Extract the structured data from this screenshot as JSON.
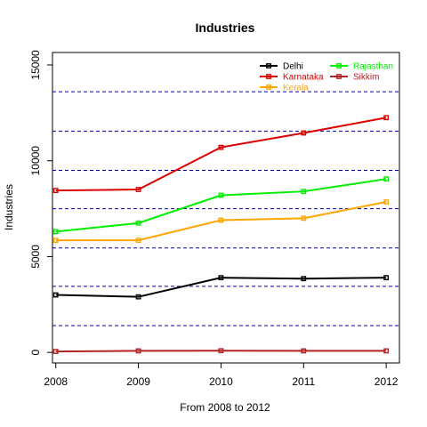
{
  "chart_data": {
    "type": "line",
    "title": "Industries",
    "xlabel": "From 2008 to 2012",
    "ylabel": "Industries",
    "x": [
      2008,
      2009,
      2010,
      2011,
      2012
    ],
    "x_tick_labels": [
      "2008",
      "2009",
      "2010",
      "2011",
      "2012"
    ],
    "xlim": [
      2007.96,
      2012.16
    ],
    "ylim": [
      -550,
      15650
    ],
    "y_ticks": [
      0,
      5000,
      10000,
      15000
    ],
    "y_tick_labels": [
      "0",
      "5000",
      "10000",
      "15000"
    ],
    "gridlines_y": [
      1400,
      3450,
      5450,
      7500,
      9500,
      11550,
      13600
    ],
    "grid_color": "#0000aa",
    "legend_position": "top-right",
    "series": [
      {
        "name": "Delhi",
        "color": "#000000",
        "values": [
          3000,
          2900,
          3900,
          3850,
          3900
        ]
      },
      {
        "name": "Karnataka",
        "color": "#dd0000",
        "values": [
          8450,
          8500,
          10700,
          11450,
          12250
        ]
      },
      {
        "name": "Kerala",
        "color": "#ffa500",
        "values": [
          5850,
          5850,
          6900,
          7000,
          7850
        ]
      },
      {
        "name": "Rajasthan",
        "color": "#00ee00",
        "values": [
          6300,
          6750,
          8200,
          8400,
          9050
        ]
      },
      {
        "name": "Sikkim",
        "color": "#b22222",
        "values": [
          50,
          80,
          90,
          80,
          80
        ]
      }
    ]
  }
}
